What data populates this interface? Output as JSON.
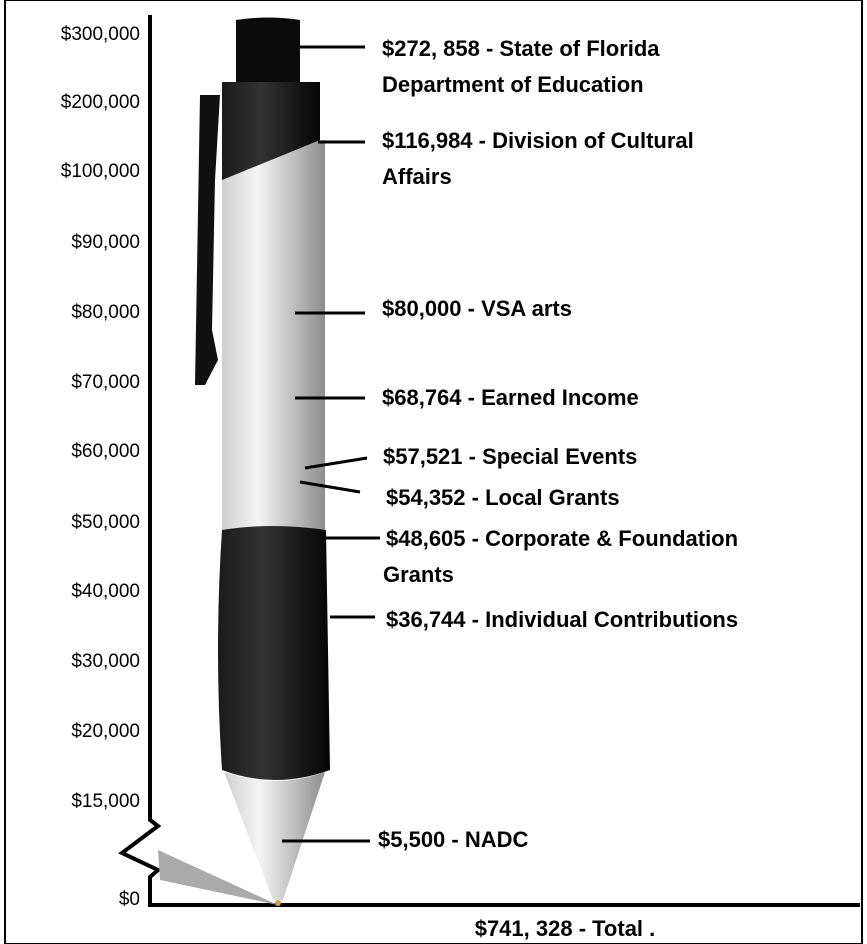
{
  "axis": {
    "ticks": [
      "$300,000",
      "$200,000",
      "$100,000",
      "$90,000",
      "$80,000",
      "$70,000",
      "$60,000",
      "$50,000",
      "$40,000",
      "$30,000",
      "$20,000",
      "$15,000",
      "$0"
    ]
  },
  "annotations": [
    {
      "lines": [
        "$272, 858 - State of Florida",
        "Department of Education"
      ]
    },
    {
      "lines": [
        "$116,984 - Division of Cultural",
        "Affairs"
      ]
    },
    {
      "lines": [
        "$80,000 - VSA arts"
      ]
    },
    {
      "lines": [
        "$68,764 - Earned Income"
      ]
    },
    {
      "lines": [
        "$57,521 - Special Events"
      ]
    },
    {
      "lines": [
        "$54,352 - Local Grants"
      ]
    },
    {
      "lines": [
        "$48,605 - Corporate & Foundation",
        "Grants"
      ]
    },
    {
      "lines": [
        "$36,744 - Individual Contributions"
      ]
    },
    {
      "lines": [
        "$5,500 - NADC"
      ]
    }
  ],
  "total": "$741, 328 - Total ."
}
